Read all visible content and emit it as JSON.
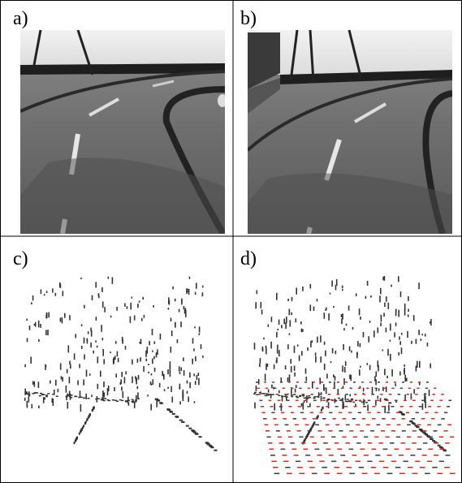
{
  "panels": [
    {
      "label": "a)"
    },
    {
      "label": "b)"
    },
    {
      "label": "c)"
    },
    {
      "label": "d)"
    }
  ]
}
